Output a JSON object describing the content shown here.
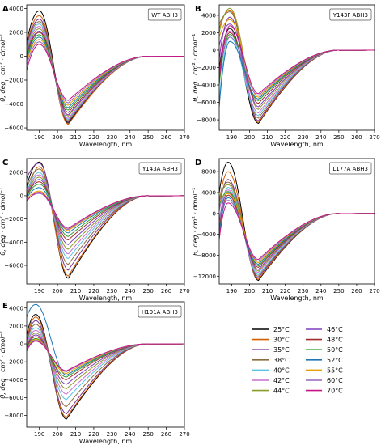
{
  "x_label": "Wavelength, nm",
  "y_label_parts": {
    "theta": "θ,",
    "unit": "deg · cm",
    "sq": "2",
    "mid": " · dmol",
    "inv": "−1"
  },
  "legend": {
    "entries": [
      {
        "label": "25°C",
        "color": "#000000"
      },
      {
        "label": "30°C",
        "color": "#d55e00"
      },
      {
        "label": "35°C",
        "color": "#7b3294"
      },
      {
        "label": "38°C",
        "color": "#8c6d3f"
      },
      {
        "label": "40°C",
        "color": "#56c2e6"
      },
      {
        "label": "42°C",
        "color": "#cc6fd1"
      },
      {
        "label": "44°C",
        "color": "#8c9b2a"
      },
      {
        "label": "46°C",
        "color": "#7f3fbf"
      },
      {
        "label": "48°C",
        "color": "#a52a2a"
      },
      {
        "label": "50°C",
        "color": "#2ca02c"
      },
      {
        "label": "52°C",
        "color": "#1f77b4"
      },
      {
        "label": "55°C",
        "color": "#e69f00"
      },
      {
        "label": "60°C",
        "color": "#9467bd"
      },
      {
        "label": "70°C",
        "color": "#c71585"
      }
    ]
  },
  "chart_data": [
    {
      "type": "line",
      "letter": "A",
      "name": "WT ABH3",
      "xlim": [
        183,
        270
      ],
      "ylim": [
        -6200,
        4300
      ],
      "xticks": [
        190,
        200,
        210,
        220,
        230,
        240,
        250,
        260,
        270
      ],
      "yticks": [
        -6000,
        -4000,
        -2000,
        0,
        2000,
        4000
      ],
      "peak_x": 190,
      "min_x": 206,
      "curves": [
        {
          "temp": "25°C",
          "start": 1200,
          "peak": 3800,
          "min": -5600
        },
        {
          "temp": "30°C",
          "start": 900,
          "peak": 3400,
          "min": -5700
        },
        {
          "temp": "35°C",
          "start": 800,
          "peak": 3100,
          "min": -5500
        },
        {
          "temp": "38°C",
          "start": 700,
          "peak": 2900,
          "min": -5400
        },
        {
          "temp": "40°C",
          "start": 600,
          "peak": 2700,
          "min": -5300
        },
        {
          "temp": "42°C",
          "start": 500,
          "peak": 2500,
          "min": -5200
        },
        {
          "temp": "44°C",
          "start": 300,
          "peak": 2300,
          "min": -5000
        },
        {
          "temp": "46°C",
          "start": 200,
          "peak": 2100,
          "min": -4900
        },
        {
          "temp": "48°C",
          "start": 0,
          "peak": 2000,
          "min": -4700
        },
        {
          "temp": "50°C",
          "start": -100,
          "peak": 1800,
          "min": -4500
        },
        {
          "temp": "52°C",
          "start": -300,
          "peak": 1600,
          "min": -4300
        },
        {
          "temp": "55°C",
          "start": -500,
          "peak": 1400,
          "min": -4100
        },
        {
          "temp": "60°C",
          "start": -800,
          "peak": 1200,
          "min": -3900
        },
        {
          "temp": "70°C",
          "start": -1200,
          "peak": 1000,
          "min": -3700
        }
      ]
    },
    {
      "type": "line",
      "letter": "B",
      "name": "Y143F ABH3",
      "xlim": [
        183,
        270
      ],
      "ylim": [
        -9200,
        5200
      ],
      "xticks": [
        190,
        200,
        210,
        220,
        230,
        240,
        250,
        260,
        270
      ],
      "yticks": [
        -8000,
        -6000,
        -4000,
        -2000,
        0,
        2000,
        4000
      ],
      "peak_x": 189,
      "min_x": 205,
      "curves": [
        {
          "temp": "25°C",
          "start": -2000,
          "peak": 2500,
          "min": -8400
        },
        {
          "temp": "30°C",
          "start": 2500,
          "peak": 4600,
          "min": -8300
        },
        {
          "temp": "35°C",
          "start": -1000,
          "peak": 3800,
          "min": -8100
        },
        {
          "temp": "38°C",
          "start": 3000,
          "peak": 4400,
          "min": -7800
        },
        {
          "temp": "40°C",
          "start": -5800,
          "peak": 1500,
          "min": -7500
        },
        {
          "temp": "42°C",
          "start": -1500,
          "peak": 2200,
          "min": -7200
        },
        {
          "temp": "44°C",
          "start": 2000,
          "peak": 4800,
          "min": -6800
        },
        {
          "temp": "46°C",
          "start": 500,
          "peak": 3000,
          "min": -6500
        },
        {
          "temp": "48°C",
          "start": -2500,
          "peak": 2000,
          "min": -6100
        },
        {
          "temp": "50°C",
          "start": -4000,
          "peak": 1800,
          "min": -5800
        },
        {
          "temp": "52°C",
          "start": -6500,
          "peak": 1000,
          "min": -5600
        },
        {
          "temp": "55°C",
          "start": 1500,
          "peak": 3500,
          "min": -5400
        },
        {
          "temp": "60°C",
          "start": -3000,
          "peak": 1500,
          "min": -5200
        },
        {
          "temp": "70°C",
          "start": -3500,
          "peak": 2800,
          "min": -5000
        }
      ]
    },
    {
      "type": "line",
      "letter": "C",
      "name": "Y143A ABH3",
      "xlim": [
        183,
        270
      ],
      "ylim": [
        -7600,
        3200
      ],
      "xticks": [
        190,
        200,
        210,
        220,
        230,
        240,
        250,
        260,
        270
      ],
      "yticks": [
        -6000,
        -4000,
        -2000,
        0,
        2000
      ],
      "peak_x": 190,
      "min_x": 206,
      "curves": [
        {
          "temp": "25°C",
          "start": 800,
          "peak": 2900,
          "min": -7100
        },
        {
          "temp": "30°C",
          "start": -300,
          "peak": 2500,
          "min": -6900
        },
        {
          "temp": "35°C",
          "start": 1500,
          "peak": 2800,
          "min": -6400
        },
        {
          "temp": "38°C",
          "start": 600,
          "peak": 2300,
          "min": -5900
        },
        {
          "temp": "40°C",
          "start": 300,
          "peak": 2000,
          "min": -5400
        },
        {
          "temp": "42°C",
          "start": 200,
          "peak": 1800,
          "min": -5000
        },
        {
          "temp": "44°C",
          "start": 100,
          "peak": 1600,
          "min": -4600
        },
        {
          "temp": "46°C",
          "start": 0,
          "peak": 1400,
          "min": -4200
        },
        {
          "temp": "48°C",
          "start": 0,
          "peak": 1200,
          "min": -3800
        },
        {
          "temp": "50°C",
          "start": -100,
          "peak": 1000,
          "min": -3500
        },
        {
          "temp": "52°C",
          "start": -200,
          "peak": 700,
          "min": -3200
        },
        {
          "temp": "55°C",
          "start": -300,
          "peak": 400,
          "min": -3000
        },
        {
          "temp": "60°C",
          "start": -400,
          "peak": 200,
          "min": -2900
        },
        {
          "temp": "70°C",
          "start": -500,
          "peak": 300,
          "min": -2800
        }
      ]
    },
    {
      "type": "line",
      "letter": "D",
      "name": "L177A ABH3",
      "xlim": [
        183,
        270
      ],
      "ylim": [
        -13500,
        10500
      ],
      "xticks": [
        190,
        200,
        210,
        220,
        230,
        240,
        250,
        260,
        270
      ],
      "yticks": [
        -12000,
        -8000,
        -4000,
        0,
        4000,
        8000
      ],
      "peak_x": 188,
      "min_x": 205,
      "curves": [
        {
          "temp": "25°C",
          "start": 4000,
          "peak": 9800,
          "min": -12800
        },
        {
          "temp": "30°C",
          "start": 2000,
          "peak": 8000,
          "min": -12600
        },
        {
          "temp": "35°C",
          "start": 1000,
          "peak": 6500,
          "min": -12300
        },
        {
          "temp": "38°C",
          "start": 2500,
          "peak": 6000,
          "min": -12000
        },
        {
          "temp": "40°C",
          "start": -2000,
          "peak": 5000,
          "min": -11700
        },
        {
          "temp": "42°C",
          "start": 500,
          "peak": 4500,
          "min": -11300
        },
        {
          "temp": "44°C",
          "start": 3000,
          "peak": 5500,
          "min": -11000
        },
        {
          "temp": "46°C",
          "start": -1500,
          "peak": 4000,
          "min": -10700
        },
        {
          "temp": "48°C",
          "start": -3000,
          "peak": 3500,
          "min": -10300
        },
        {
          "temp": "50°C",
          "start": 1500,
          "peak": 4200,
          "min": -10000
        },
        {
          "temp": "52°C",
          "start": -4000,
          "peak": 3000,
          "min": -9700
        },
        {
          "temp": "55°C",
          "start": 2000,
          "peak": 3800,
          "min": -9400
        },
        {
          "temp": "60°C",
          "start": -1000,
          "peak": 2500,
          "min": -9100
        },
        {
          "temp": "70°C",
          "start": -5000,
          "peak": 2000,
          "min": -8800
        }
      ]
    },
    {
      "type": "line",
      "letter": "E",
      "name": "H191A ABH3",
      "xlim": [
        183,
        270
      ],
      "ylim": [
        -9300,
        4700
      ],
      "xticks": [
        190,
        200,
        210,
        220,
        230,
        240,
        250,
        260,
        270
      ],
      "yticks": [
        -8000,
        -6000,
        -4000,
        -2000,
        0,
        2000,
        4000
      ],
      "peak_x": 188,
      "min_x": 205,
      "curves": [
        {
          "temp": "25°C",
          "start": 1000,
          "peak": 3300,
          "min": -8400
        },
        {
          "temp": "30°C",
          "start": 500,
          "peak": 3000,
          "min": -8200
        },
        {
          "temp": "35°C",
          "start": 300,
          "peak": 2600,
          "min": -7800
        },
        {
          "temp": "38°C",
          "start": 200,
          "peak": 2200,
          "min": -7000
        },
        {
          "temp": "40°C",
          "start": 100,
          "peak": 1800,
          "min": -6200
        },
        {
          "temp": "42°C",
          "start": 0,
          "peak": 1500,
          "min": -5600
        },
        {
          "temp": "44°C",
          "start": -200,
          "peak": 1200,
          "min": -5000
        },
        {
          "temp": "46°C",
          "start": -300,
          "peak": 1000,
          "min": -4500
        },
        {
          "temp": "48°C",
          "start": -400,
          "peak": 800,
          "min": -4000
        },
        {
          "temp": "50°C",
          "start": -500,
          "peak": 600,
          "min": -3700
        },
        {
          "temp": "52°C",
          "start": 3000,
          "peak": 4400,
          "min": -3500
        },
        {
          "temp": "55°C",
          "start": -600,
          "peak": 500,
          "min": -3300
        },
        {
          "temp": "60°C",
          "start": -700,
          "peak": 400,
          "min": -3100
        },
        {
          "temp": "70°C",
          "start": -800,
          "peak": 300,
          "min": -3000
        }
      ]
    }
  ]
}
